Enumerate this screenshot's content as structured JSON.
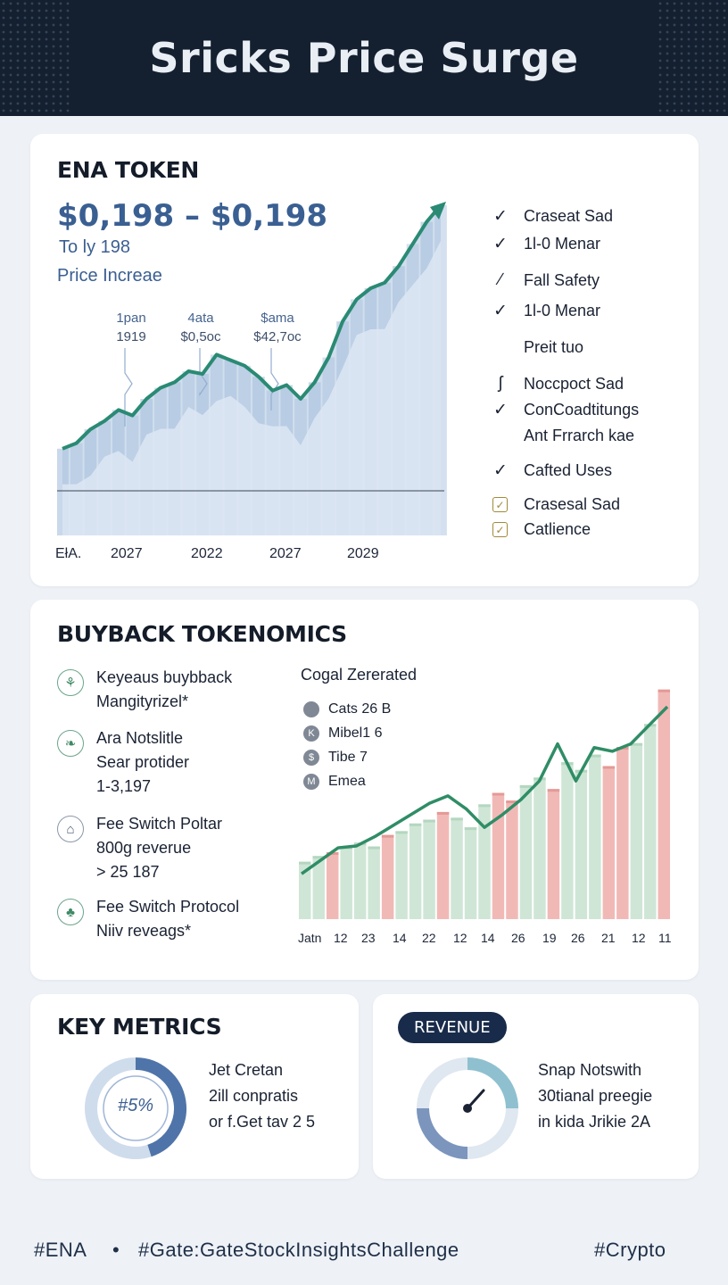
{
  "header": {
    "title": "Sricks Price Surge"
  },
  "ena_card": {
    "title": "ENA TOKEN",
    "price_range": "$0,198 – $0,198",
    "subtitle1": "To ly 198",
    "subtitle2": "Price Increae",
    "annotations": [
      {
        "label": "1pan",
        "value": "1919"
      },
      {
        "label": "4ata",
        "value": "$0,5oc"
      },
      {
        "label": "$ama",
        "value": "$42,7oc"
      }
    ],
    "x_labels": [
      "EłA.",
      "2027",
      "2022",
      "2027",
      "2029"
    ],
    "features": [
      {
        "icon": "pencil-check-icon",
        "label": "Craseat Sad"
      },
      {
        "icon": "check-icon",
        "label": "1l-0 Menar"
      },
      {
        "icon": "pencil-check-icon",
        "label": "Fall Safety"
      },
      {
        "icon": "check-icon",
        "label": "1l-0 Menar"
      },
      {
        "icon": "",
        "label": "Preit tuo"
      },
      {
        "icon": "hook-icon",
        "label": "Noccpoct Sad"
      },
      {
        "icon": "check-icon",
        "label": "ConCoadtitungs"
      },
      {
        "icon": "",
        "label": "Ant Frrarch kae"
      },
      {
        "icon": "check-icon",
        "label": "Cafted Uses"
      },
      {
        "icon": "checkbox-icon",
        "label": "Crasesal Sad"
      },
      {
        "icon": "checkbox-icon",
        "label": "Catlience"
      }
    ],
    "colors": {
      "line": "#2a8a73",
      "area": "#a9c2df",
      "arrow": "#2a8a73"
    }
  },
  "chart_data": [
    {
      "type": "area",
      "title": "ENA TOKEN",
      "x_tick_labels": [
        "EłA.",
        "2027",
        "2022",
        "2027",
        "2029"
      ],
      "series": [
        {
          "values": [
            0.12,
            0.14,
            0.19,
            0.22,
            0.26,
            0.24,
            0.3,
            0.34,
            0.36,
            0.4,
            0.39,
            0.46,
            0.44,
            0.42,
            0.38,
            0.33,
            0.35,
            0.3,
            0.36,
            0.45,
            0.58,
            0.66,
            0.7,
            0.72,
            0.78,
            0.86,
            0.94,
            1.0
          ]
        }
      ]
    },
    {
      "type": "bar",
      "title": "Cogal Zererated",
      "x_tick_labels": [
        "Jatn",
        "12",
        "23",
        "14",
        "22",
        "12",
        "14",
        "26",
        "19",
        "26",
        "21",
        "12",
        "11"
      ],
      "legend": [
        "Cats 26 B",
        "Mibel1 6",
        "Tibe 7",
        "Emea"
      ],
      "series": [
        {
          "values": [
            30,
            33,
            35,
            38,
            40,
            38,
            44,
            46,
            50,
            52,
            56,
            53,
            48,
            60,
            66,
            62,
            70,
            74,
            68,
            82,
            78,
            86,
            80,
            90,
            92,
            102,
            120
          ]
        },
        {
          "values": [
            0.1,
            0.17,
            0.24,
            0.25,
            0.3,
            0.36,
            0.42,
            0.48,
            0.52,
            0.45,
            0.35,
            0.42,
            0.5,
            0.6,
            0.8,
            0.6,
            0.78,
            0.76,
            0.8,
            0.9,
            1.0
          ]
        }
      ]
    },
    {
      "type": "pie",
      "title": "KEY METRICS",
      "center_label": "#5%",
      "values": [
        45,
        55
      ]
    }
  ],
  "buyback_card": {
    "title": "BUYBACK TOKENOMICS",
    "items": [
      {
        "icon": "chart-icon",
        "line1": "Keyeaus buybback",
        "line2": "Mangityrizel*",
        "line3": ""
      },
      {
        "icon": "book-icon",
        "line1": "Ara Notslitle",
        "line2": "Sear protider",
        "line3": "1-3,197"
      },
      {
        "icon": "graduation-icon",
        "line1": "Fee Switch Poltar",
        "line2": "800g reverue",
        "line3": "> 25 187"
      },
      {
        "icon": "clover-icon",
        "line1": "Fee Switch Protocol",
        "line2": "Niiv reveags*",
        "line3": ""
      }
    ],
    "legend_title": "Cogal Zererated",
    "legend": [
      {
        "icon": "",
        "label": "Cats 26 B"
      },
      {
        "icon": "K",
        "label": "Mibel1 6"
      },
      {
        "icon": "$",
        "label": "Tibe 7"
      },
      {
        "icon": "M",
        "label": "Emea"
      }
    ],
    "x_labels": [
      "Jatn",
      "12",
      "23",
      "14",
      "22",
      "12",
      "14",
      "26",
      "19",
      "26",
      "21",
      "12",
      "11"
    ],
    "colors": {
      "green_bar": "#cfe6d6",
      "red_bar": "#f1b9b6",
      "line": "#2f8d66"
    }
  },
  "metrics_card": {
    "title": "KEY METRICS",
    "center": "#5%",
    "lines": [
      "Jet Cretan",
      "2ill conpratis",
      "or f.Get tav 2 5"
    ]
  },
  "revenue_card": {
    "pill": "REVENUE",
    "lines": [
      "Snap Notswith",
      "30tianal preegie",
      "in kida Jrikie 2A"
    ]
  },
  "footer": {
    "left": "#ENA",
    "sep": "•",
    "middle": "#Gate:GateStockInsightsChallenge",
    "right": "#Crypto"
  }
}
